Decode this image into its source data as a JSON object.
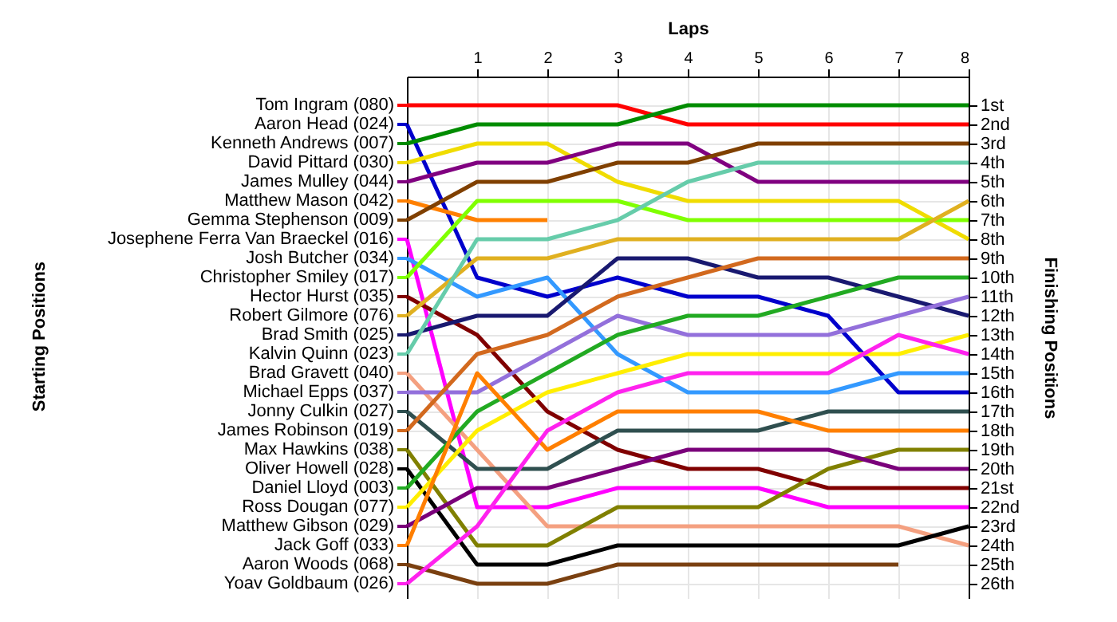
{
  "chart_data": {
    "type": "line",
    "xlabel": "Laps",
    "ylabel": "Finishing Positions",
    "annotations": [
      "Starting Positions"
    ],
    "legend": "left",
    "x": [
      0,
      1,
      2,
      3,
      4,
      5,
      6,
      7,
      8
    ],
    "xlim": [
      0,
      8
    ],
    "xticks": [
      1,
      2,
      3,
      4,
      5,
      6,
      7,
      8
    ],
    "ylim": [
      26.75,
      -0.5
    ],
    "yticks": [
      {
        "value": 1,
        "label": "1st"
      },
      {
        "value": 2,
        "label": "2nd"
      },
      {
        "value": 3,
        "label": "3rd"
      },
      {
        "value": 4,
        "label": "4th"
      },
      {
        "value": 5,
        "label": "5th"
      },
      {
        "value": 6,
        "label": "6th"
      },
      {
        "value": 7,
        "label": "7th"
      },
      {
        "value": 8,
        "label": "8th"
      },
      {
        "value": 9,
        "label": "9th"
      },
      {
        "value": 10,
        "label": "10th"
      },
      {
        "value": 11,
        "label": "11th"
      },
      {
        "value": 12,
        "label": "12th"
      },
      {
        "value": 13,
        "label": "13th"
      },
      {
        "value": 14,
        "label": "14th"
      },
      {
        "value": 15,
        "label": "15th"
      },
      {
        "value": 16,
        "label": "16th"
      },
      {
        "value": 17,
        "label": "17th"
      },
      {
        "value": 18,
        "label": "18th"
      },
      {
        "value": 19,
        "label": "19th"
      },
      {
        "value": 20,
        "label": "20th"
      },
      {
        "value": 21,
        "label": "21st"
      },
      {
        "value": 22,
        "label": "22nd"
      },
      {
        "value": 23,
        "label": "23rd"
      },
      {
        "value": 24,
        "label": "24th"
      },
      {
        "value": 25,
        "label": "25th"
      },
      {
        "value": 26,
        "label": "26th"
      }
    ],
    "grid": true,
    "series": [
      {
        "name": "Tom Ingram (080)",
        "color": "#ff0000",
        "values": [
          1,
          1,
          1,
          1,
          2,
          2,
          2,
          2,
          2
        ]
      },
      {
        "name": "Aaron Head (024)",
        "color": "#0000cc",
        "values": [
          2,
          10,
          11,
          10,
          11,
          11,
          12,
          16,
          16
        ]
      },
      {
        "name": "Kenneth Andrews (007)",
        "color": "#008c00",
        "values": [
          3,
          2,
          2,
          2,
          1,
          1,
          1,
          1,
          1
        ]
      },
      {
        "name": "David Pittard (030)",
        "color": "#f0dc00",
        "values": [
          4,
          3,
          3,
          5,
          6,
          6,
          6,
          6,
          8
        ]
      },
      {
        "name": "James Mulley (044)",
        "color": "#800080",
        "values": [
          5,
          4,
          4,
          3,
          3,
          5,
          5,
          5,
          5
        ]
      },
      {
        "name": "Matthew Mason (042)",
        "color": "#ff8000",
        "values": [
          6,
          7,
          7,
          null,
          null,
          null,
          null,
          null,
          null
        ]
      },
      {
        "name": "Gemma Stephenson (009)",
        "color": "#804000",
        "values": [
          7,
          5,
          5,
          4,
          4,
          3,
          3,
          3,
          3
        ]
      },
      {
        "name": "Josephene Ferra Van Braeckel (016)",
        "color": "#ff00ff",
        "values": [
          8,
          22,
          22,
          21,
          21,
          21,
          22,
          22,
          22
        ]
      },
      {
        "name": "Josh Butcher (034)",
        "color": "#3399ff",
        "values": [
          9,
          11,
          10,
          14,
          16,
          16,
          16,
          15,
          15
        ]
      },
      {
        "name": "Christopher Smiley (017)",
        "color": "#80ff00",
        "values": [
          10,
          6,
          6,
          6,
          7,
          7,
          7,
          7,
          7
        ]
      },
      {
        "name": "Hector Hurst (035)",
        "color": "#800000",
        "values": [
          11,
          13,
          17,
          19,
          20,
          20,
          21,
          21,
          21
        ]
      },
      {
        "name": "Robert Gilmore (076)",
        "color": "#e0b020",
        "values": [
          12,
          9,
          9,
          8,
          8,
          8,
          8,
          8,
          6
        ]
      },
      {
        "name": "Brad Smith (025)",
        "color": "#191970",
        "values": [
          13,
          12,
          12,
          9,
          9,
          10,
          10,
          11,
          12
        ]
      },
      {
        "name": "Kalvin Quinn (023)",
        "color": "#66ccaa",
        "values": [
          14,
          8,
          8,
          7,
          5,
          4,
          4,
          4,
          4
        ]
      },
      {
        "name": "Brad Gravett (040)",
        "color": "#f4a080",
        "values": [
          15,
          19,
          23,
          23,
          23,
          23,
          23,
          23,
          24
        ]
      },
      {
        "name": "Michael Epps (037)",
        "color": "#9370db",
        "values": [
          16,
          16,
          14,
          12,
          13,
          13,
          13,
          12,
          11
        ]
      },
      {
        "name": "Jonny Culkin (027)",
        "color": "#2f4f4f",
        "values": [
          17,
          20,
          20,
          18,
          18,
          18,
          17,
          17,
          17
        ]
      },
      {
        "name": "James Robinson (019)",
        "color": "#d2691e",
        "values": [
          18,
          14,
          13,
          11,
          10,
          9,
          9,
          9,
          9
        ]
      },
      {
        "name": "Max Hawkins (038)",
        "color": "#808000",
        "values": [
          19,
          24,
          24,
          22,
          22,
          22,
          20,
          19,
          19
        ]
      },
      {
        "name": "Oliver Howell (028)",
        "color": "#000000",
        "values": [
          20,
          25,
          25,
          24,
          24,
          24,
          24,
          24,
          23
        ]
      },
      {
        "name": "Daniel Lloyd (003)",
        "color": "#22aa22",
        "values": [
          21,
          17,
          15,
          13,
          12,
          12,
          11,
          10,
          10
        ]
      },
      {
        "name": "Ross Dougan (077)",
        "color": "#ffee00",
        "values": [
          22,
          18,
          16,
          15,
          14,
          14,
          14,
          14,
          13
        ]
      },
      {
        "name": "Matthew Gibson (029)",
        "color": "#7a007a",
        "values": [
          23,
          21,
          21,
          20,
          19,
          19,
          19,
          20,
          20
        ]
      },
      {
        "name": "Jack Goff (033)",
        "color": "#ff7f00",
        "values": [
          24,
          15,
          19,
          17,
          17,
          17,
          18,
          18,
          18
        ]
      },
      {
        "name": "Aaron Woods (068)",
        "color": "#7a4010",
        "values": [
          25,
          26,
          26,
          25,
          25,
          25,
          25,
          25,
          null
        ]
      },
      {
        "name": "Yoav Goldbaum (026)",
        "color": "#ff22ee",
        "values": [
          26,
          23,
          18,
          16,
          15,
          15,
          15,
          13,
          14
        ]
      }
    ]
  }
}
